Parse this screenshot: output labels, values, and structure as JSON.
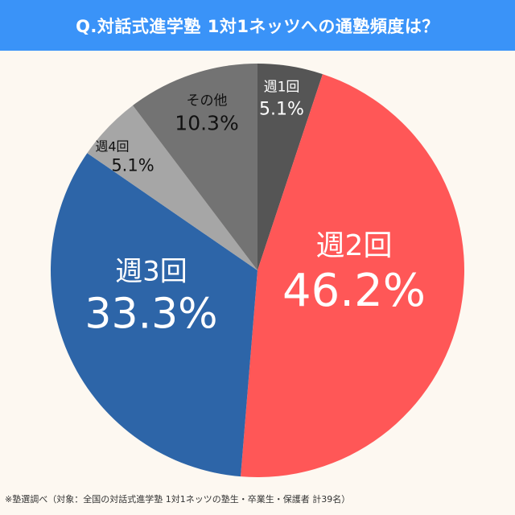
{
  "header": {
    "title": "Q.対話式進学塾 1対1ネッツへの通塾頻度は？"
  },
  "footnote": "※塾選調べ（対象：全国の対話式進学塾 1対1ネッツの塾生・卒業生・保護者 計39名）",
  "chart_data": {
    "type": "pie",
    "title": "Q.対話式進学塾 1対1ネッツへの通塾頻度は？",
    "start_angle": "12 o'clock, clockwise",
    "categories": [
      "週1回",
      "週2回",
      "週3回",
      "週4回",
      "その他"
    ],
    "values": [
      5.1,
      46.2,
      33.3,
      5.1,
      10.3
    ],
    "unit": "%",
    "colors": [
      "#555555",
      "#ff5757",
      "#2d65a8",
      "#a6a6a6",
      "#737373"
    ],
    "labels": [
      {
        "name": "週1回",
        "pct": "5.1%",
        "color": "#ffffff"
      },
      {
        "name": "週2回",
        "pct": "46.2%",
        "color": "#ffffff"
      },
      {
        "name": "週3回",
        "pct": "33.3%",
        "color": "#ffffff"
      },
      {
        "name": "週4回",
        "pct": "5.1%",
        "color": "#111111"
      },
      {
        "name": "その他",
        "pct": "10.3%",
        "color": "#111111"
      }
    ],
    "n": 39
  }
}
